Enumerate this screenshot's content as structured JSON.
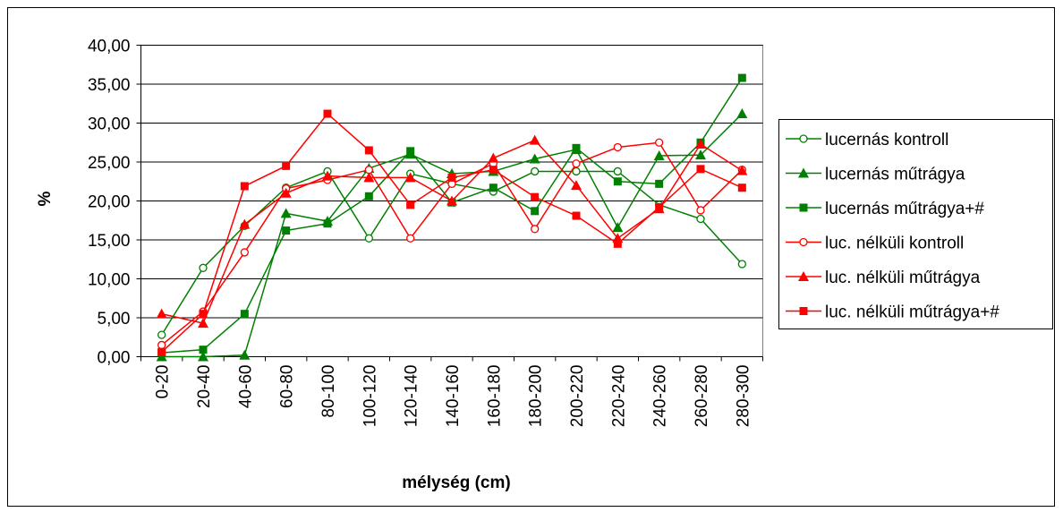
{
  "chart_data": {
    "type": "line",
    "x_label": "mélység (cm)",
    "y_label": "%",
    "categories": [
      "0-20",
      "20-40",
      "40-60",
      "60-80",
      "80-100",
      "100-120",
      "120-140",
      "140-160",
      "160-180",
      "180-200",
      "200-220",
      "220-240",
      "240-260",
      "260-280",
      "280-300"
    ],
    "ylim": [
      0,
      40
    ],
    "yticks": [
      {
        "value": 0,
        "label": "0,00"
      },
      {
        "value": 5,
        "label": "5,00"
      },
      {
        "value": 10,
        "label": "10,00"
      },
      {
        "value": 15,
        "label": "15,00"
      },
      {
        "value": 20,
        "label": "20,00"
      },
      {
        "value": 25,
        "label": "25,00"
      },
      {
        "value": 30,
        "label": "30,00"
      },
      {
        "value": 35,
        "label": "35,00"
      },
      {
        "value": 40,
        "label": "40,00"
      }
    ],
    "grid": true,
    "legend": "right",
    "series": [
      {
        "name": "lucernás kontroll",
        "color": "#008000",
        "marker": "open-circle",
        "values": [
          2.8,
          11.4,
          16.8,
          21.7,
          23.8,
          15.2,
          23.5,
          22.2,
          21.2,
          23.8,
          23.8,
          23.8,
          19.5,
          17.7,
          11.9
        ]
      },
      {
        "name": "lucernás műtrágya",
        "color": "#008000",
        "marker": "triangle",
        "values": [
          0.0,
          0.0,
          0.2,
          18.4,
          17.4,
          24.2,
          26.0,
          23.5,
          23.8,
          25.4,
          26.6,
          16.6,
          25.8,
          25.9,
          31.2
        ]
      },
      {
        "name": "lucernás műtrágya+#",
        "color": "#008000",
        "marker": "square",
        "values": [
          0.5,
          0.9,
          5.5,
          16.2,
          17.1,
          20.6,
          26.4,
          19.8,
          21.7,
          18.7,
          26.8,
          22.5,
          22.2,
          27.5,
          35.8
        ]
      },
      {
        "name": "luc. nélküli kontroll",
        "color": "#ff0000",
        "marker": "open-circle",
        "values": [
          1.5,
          5.8,
          13.4,
          21.6,
          22.7,
          24.0,
          15.2,
          22.2,
          24.8,
          16.4,
          24.8,
          26.9,
          27.5,
          18.8,
          24.0
        ]
      },
      {
        "name": "luc. nélküli műtrágya",
        "color": "#ff0000",
        "marker": "triangle",
        "values": [
          5.5,
          4.3,
          17.0,
          21.0,
          23.2,
          23.0,
          23.0,
          20.0,
          25.5,
          27.8,
          22.0,
          15.2,
          19.0,
          27.3,
          23.9
        ]
      },
      {
        "name": "luc. nélküli műtrágya+#",
        "color": "#ff0000",
        "marker": "square",
        "values": [
          0.6,
          5.5,
          21.9,
          24.5,
          31.2,
          26.5,
          19.5,
          23.0,
          24.0,
          20.5,
          18.1,
          14.5,
          19.2,
          24.1,
          21.7
        ]
      }
    ]
  }
}
